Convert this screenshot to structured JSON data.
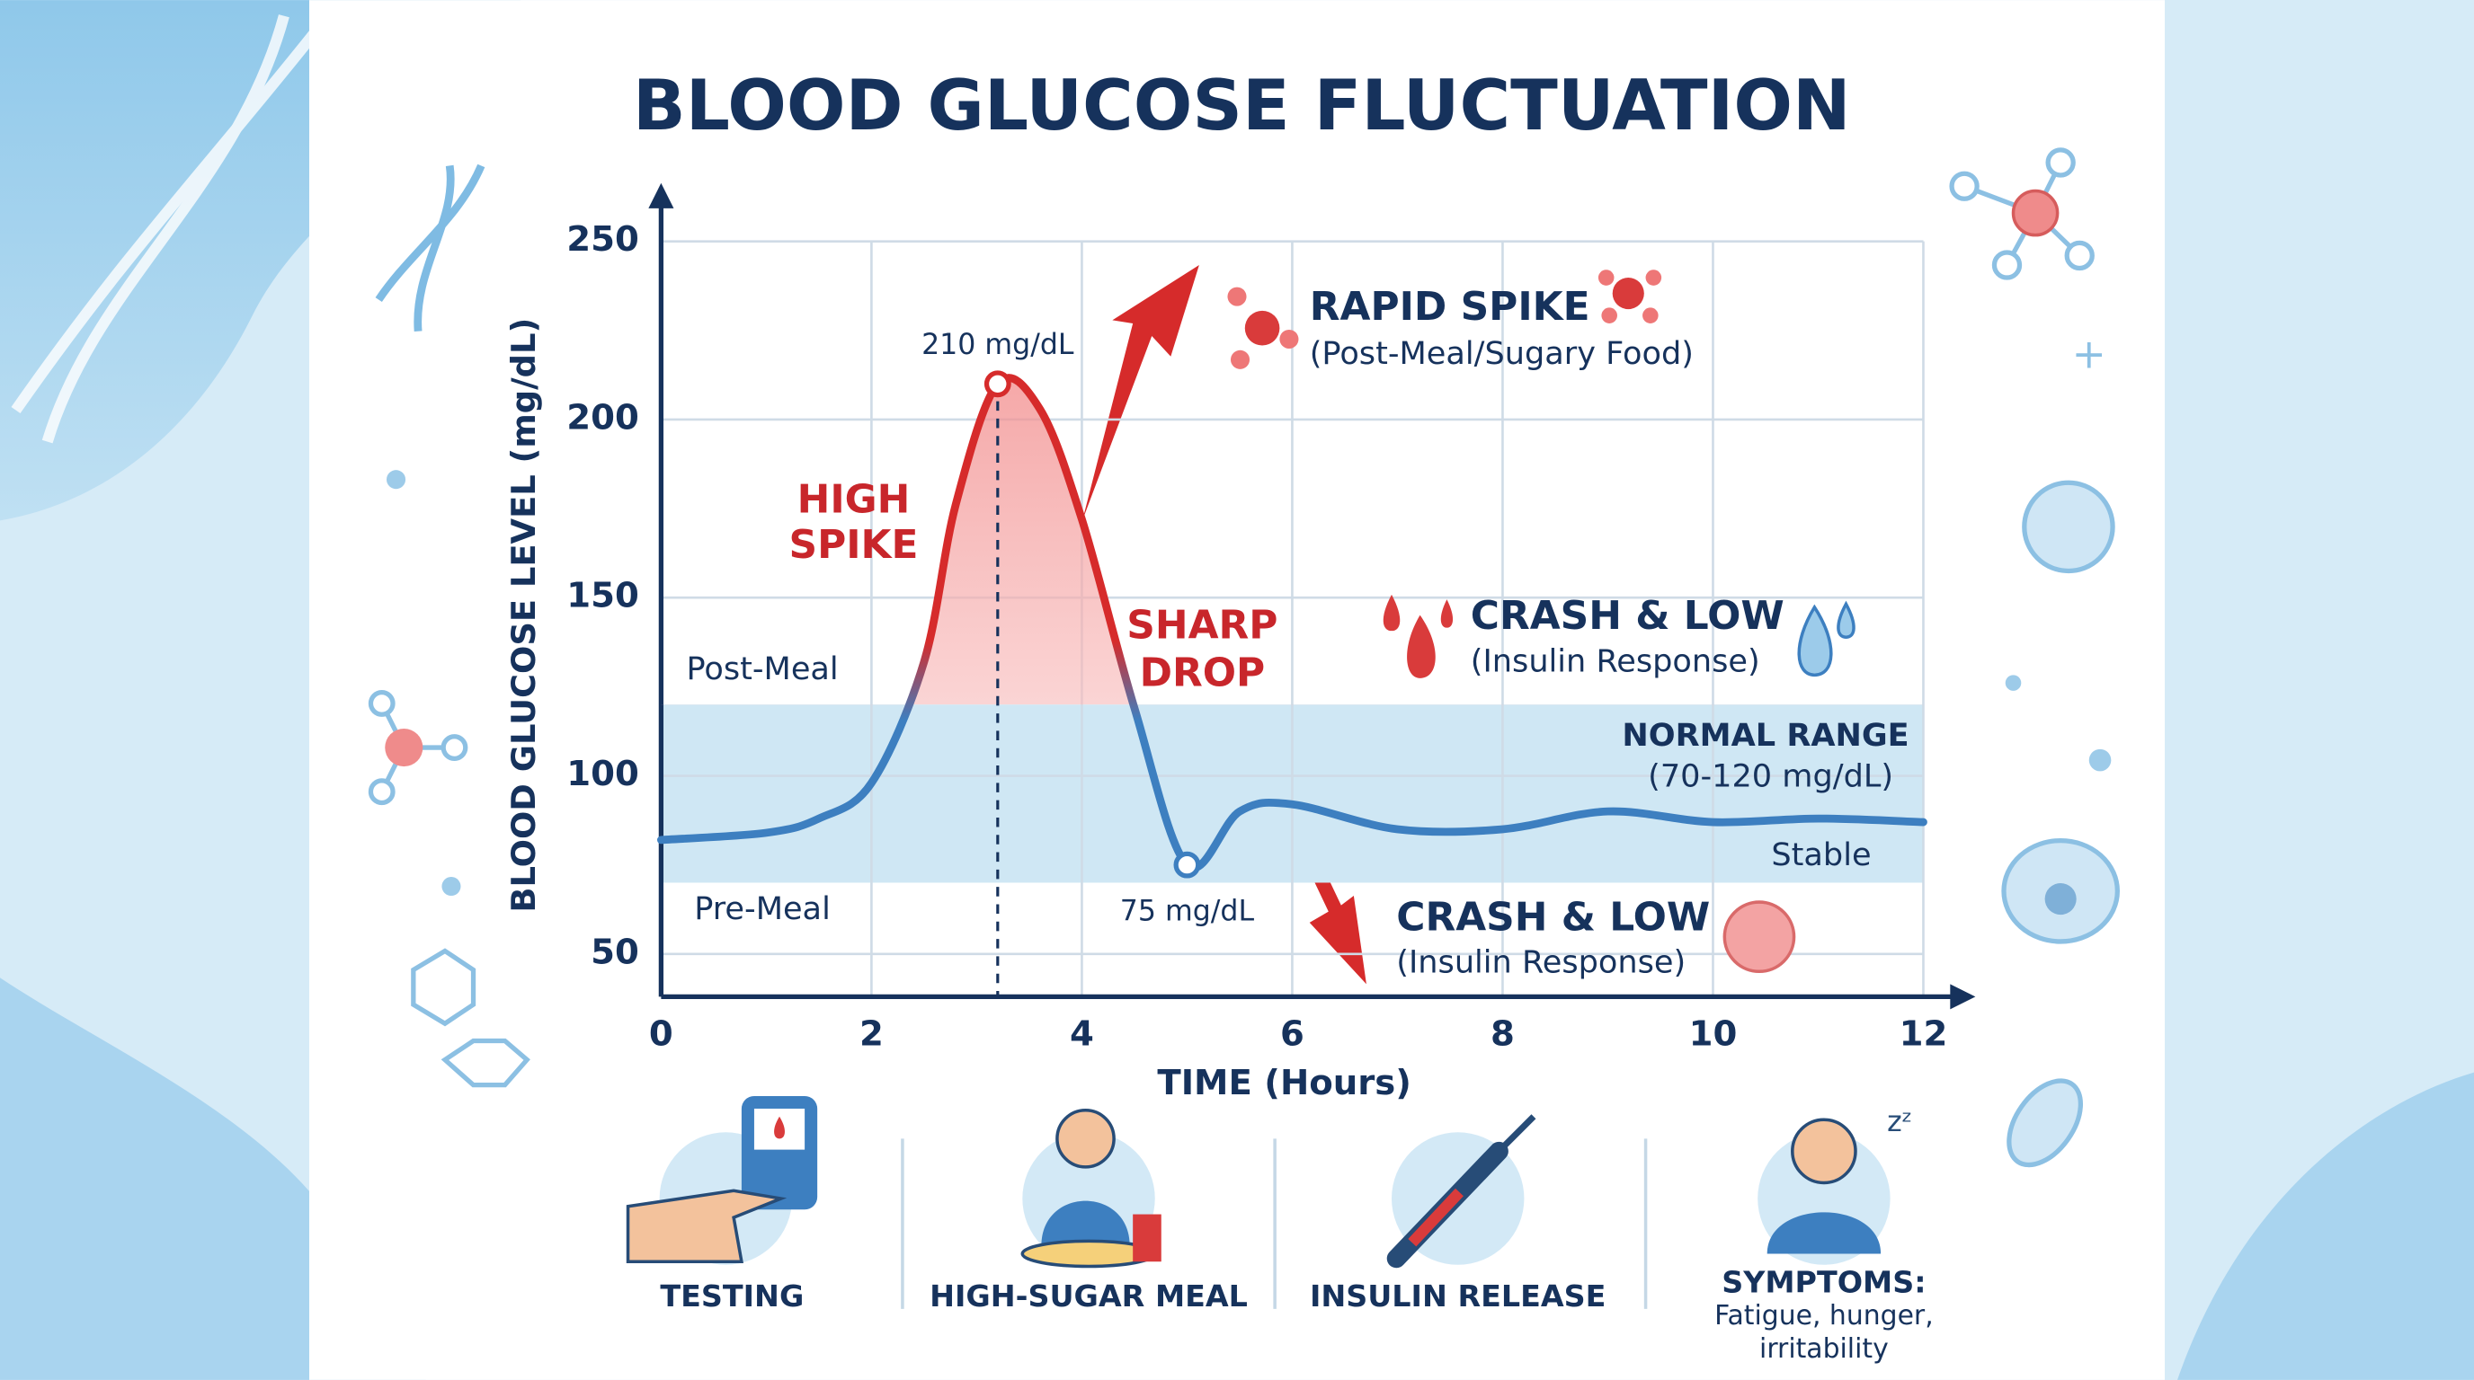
{
  "title": "BLOOD GLUCOSE FLUCTUATION",
  "chart_data": {
    "type": "line",
    "x_label": "TIME (Hours)",
    "y_label": "BLOOD GLUCOSE LEVEL (mg/dL)",
    "x": [
      0,
      1,
      1.5,
      2,
      2.5,
      2.8,
      3.2,
      3.6,
      4,
      4.5,
      5,
      5.5,
      6,
      7,
      8,
      9,
      10,
      11,
      12
    ],
    "series": [
      {
        "color": "#3d7fc0",
        "spike_color": "#d62b2b",
        "values": [
          82,
          84,
          88,
          98,
          132,
          176,
          210,
          203,
          172,
          119,
          75,
          90,
          92,
          85,
          85,
          90,
          87,
          88,
          87
        ]
      }
    ],
    "value_labels": [
      null,
      null,
      null,
      null,
      null,
      null,
      "210 mg/dL",
      null,
      null,
      null,
      "75 mg/dL",
      null,
      null,
      null,
      null,
      null,
      null,
      null,
      null
    ],
    "xlim": [
      0,
      12
    ],
    "xticks": [
      0,
      2,
      4,
      6,
      8,
      10,
      12
    ],
    "ylim": [
      38,
      250
    ],
    "yticks": [
      50,
      100,
      150,
      200,
      250
    ],
    "grid": true,
    "normal_range": [
      70,
      120
    ],
    "normal_range_color": "#cfe7f4",
    "annotations": [
      {
        "lines": [
          "Post-Meal"
        ]
      },
      {
        "lines": [
          "Pre-Meal"
        ]
      },
      {
        "lines": [
          "HIGH",
          "SPIKE"
        ]
      },
      {
        "lines": [
          "SHARP",
          "DROP"
        ]
      },
      {
        "lines": [
          "RAPID SPIKE",
          "(Post-Meal/Sugary Food)"
        ]
      },
      {
        "lines": [
          "CRASH & LOW",
          "(Insulin Response)"
        ]
      },
      {
        "lines": [
          "NORMAL RANGE",
          "(70-120 mg/dL)"
        ]
      },
      {
        "lines": [
          "Stable"
        ]
      },
      {
        "lines": [
          "CRASH & LOW",
          "(Insulin Response)"
        ]
      }
    ]
  },
  "panels": [
    {
      "lines": [
        "TESTING"
      ]
    },
    {
      "lines": [
        "HIGH-SUGAR MEAL"
      ]
    },
    {
      "lines": [
        "INSULIN RELEASE"
      ]
    },
    {
      "lines": [
        "SYMPTOMS:",
        "Fatigue, hunger,",
        "irritability"
      ]
    }
  ]
}
